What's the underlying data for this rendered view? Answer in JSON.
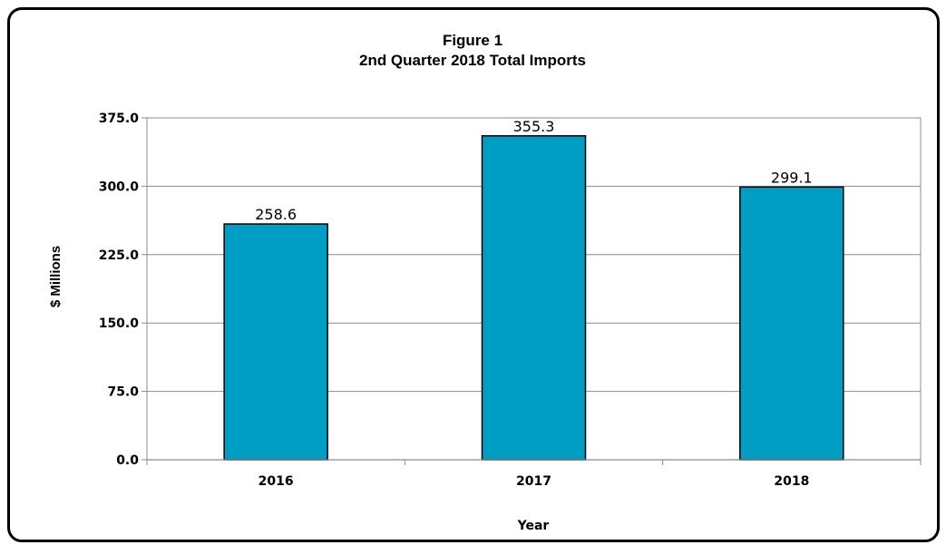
{
  "chart_data": {
    "type": "bar",
    "title": "Figure 1",
    "subtitle": "2nd Quarter 2018 Total Imports",
    "xlabel": "Year",
    "ylabel": "$ Millions",
    "categories": [
      "2016",
      "2017",
      "2018"
    ],
    "values": [
      258.6,
      355.3,
      299.1
    ],
    "data_labels": [
      "258.6",
      "355.3",
      "299.1"
    ],
    "ylim": [
      0,
      375
    ],
    "yticks": [
      0,
      75,
      150,
      225,
      300,
      375
    ],
    "ytick_labels": [
      "0.0",
      "75.0",
      "150.0",
      "225.0",
      "300.0",
      "375.0"
    ],
    "grid": true,
    "legend": "none",
    "bar_color": "#009ec4",
    "bar_edge_color": "#000000"
  }
}
